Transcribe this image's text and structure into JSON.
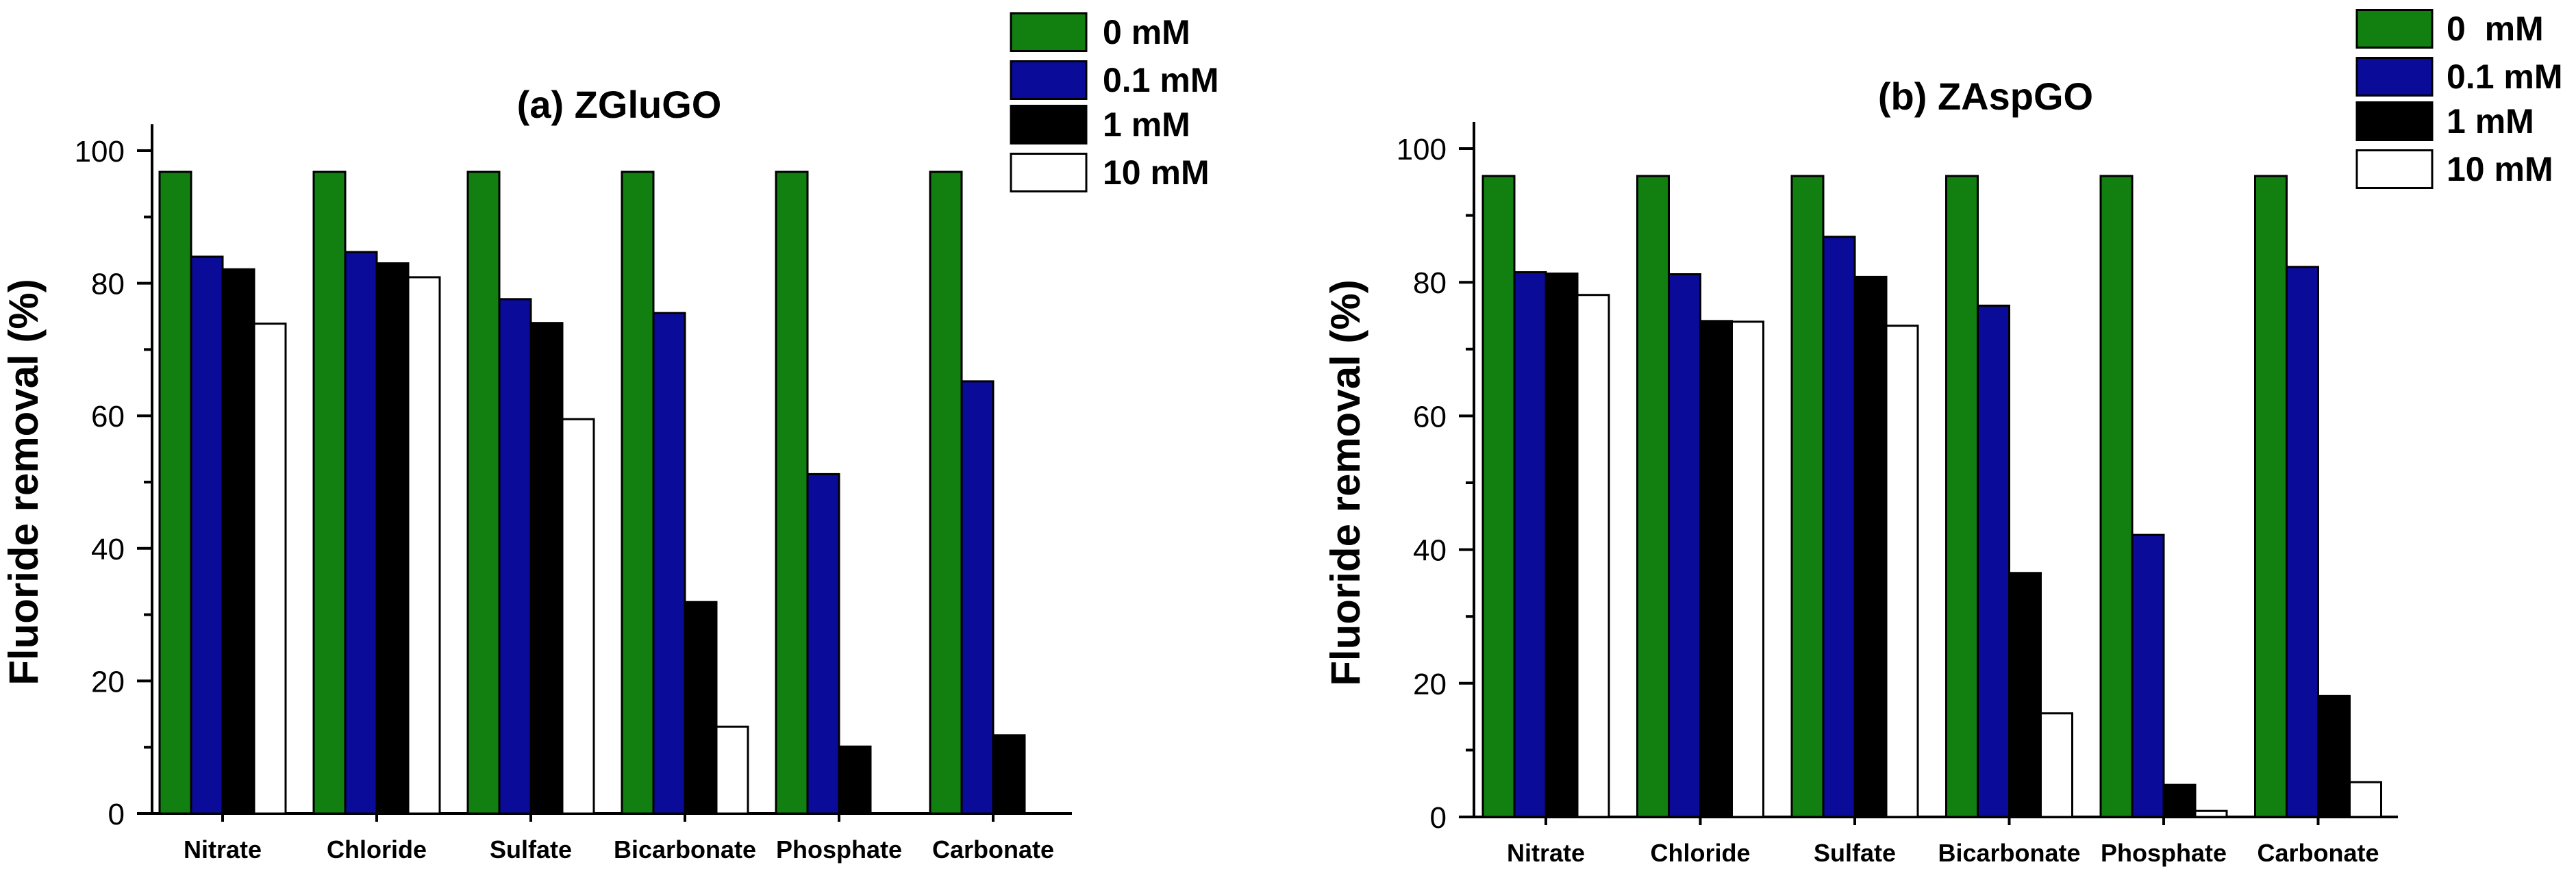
{
  "chart_data": [
    {
      "type": "bar",
      "title": "(a) ZGluGO",
      "xlabel": "",
      "ylabel": "Fluoride removal (%)",
      "ylim": [
        0,
        104
      ],
      "yticks": [
        "0",
        "20",
        "40",
        "60",
        "80",
        "100"
      ],
      "categories": [
        "Nitrate",
        "Chloride",
        "Sulfate",
        "Bicarbonate",
        "Phosphate",
        "Carbonate"
      ],
      "series": [
        {
          "name": "0 mM",
          "color": "#118011",
          "values": [
            96.8,
            96.8,
            96.8,
            96.8,
            96.8,
            96.8
          ]
        },
        {
          "name": "0.1 mM",
          "color": "#0b0b9a",
          "values": [
            84.0,
            84.7,
            77.6,
            75.5,
            51.2,
            65.2
          ]
        },
        {
          "name": "1 mM",
          "color": "#000000",
          "values": [
            82.1,
            83.0,
            74.0,
            31.9,
            10.1,
            11.8
          ]
        },
        {
          "name": "10 mM",
          "color": "#ffffff",
          "values": [
            73.9,
            80.9,
            59.5,
            13.1,
            0,
            0
          ]
        }
      ],
      "legend_position": "top-right"
    },
    {
      "type": "bar",
      "title": "(b) ZAspGO",
      "xlabel": "",
      "ylabel": "Fluoride removal (%)",
      "ylim": [
        0,
        104
      ],
      "yticks": [
        "0",
        "20",
        "40",
        "60",
        "80",
        "100"
      ],
      "categories": [
        "Nitrate",
        "Chloride",
        "Sulfate",
        "Bicarbonate",
        "Phosphate",
        "Carbonate"
      ],
      "series": [
        {
          "name": "0  mM",
          "color": "#118011",
          "values": [
            95.9,
            95.9,
            95.9,
            95.9,
            95.9,
            95.9
          ]
        },
        {
          "name": "0.1 mM",
          "color": "#0b0b9a",
          "values": [
            81.5,
            81.2,
            86.8,
            76.5,
            42.2,
            82.3
          ]
        },
        {
          "name": "1 mM",
          "color": "#000000",
          "values": [
            81.3,
            74.2,
            80.8,
            36.5,
            4.8,
            18.1
          ]
        },
        {
          "name": "10 mM",
          "color": "#ffffff",
          "values": [
            78.1,
            74.1,
            73.5,
            15.5,
            0.9,
            5.2
          ]
        }
      ],
      "legend_position": "top-right"
    }
  ]
}
